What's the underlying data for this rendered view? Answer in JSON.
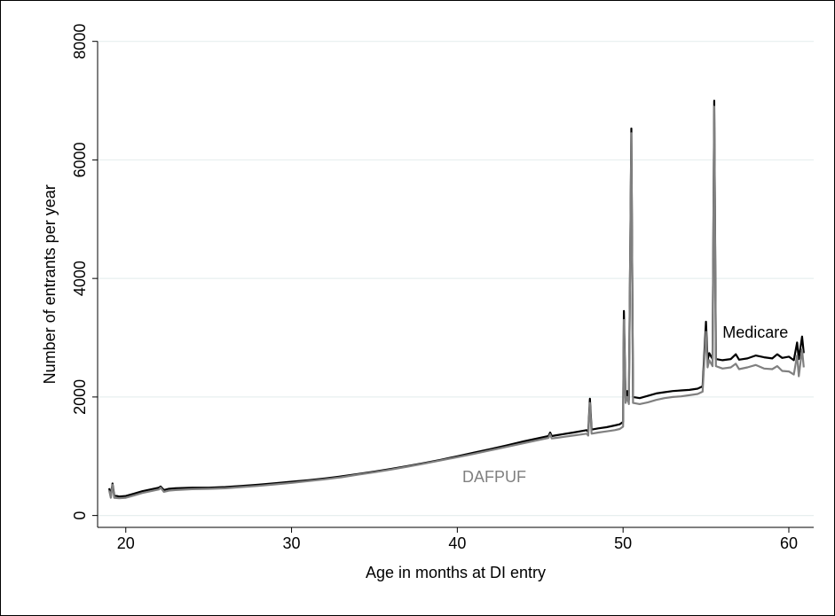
{
  "chart_data": {
    "type": "line",
    "title": "",
    "xlabel": "Age in months at DI entry",
    "ylabel": "Number of entrants per year",
    "xlim": [
      18.3,
      61.5
    ],
    "ylim": [
      -200,
      8100
    ],
    "x_ticks": [
      20,
      30,
      40,
      50,
      60
    ],
    "y_ticks": [
      0,
      2000,
      4000,
      6000,
      8000
    ],
    "grid": "horizontal",
    "legend": "none",
    "annotations": [
      {
        "text": "Medicare",
        "series": "Medicare"
      },
      {
        "text": "DAFPUF",
        "series": "DAFPUF"
      }
    ],
    "series": [
      {
        "name": "Medicare",
        "color": "#000000",
        "points": [
          [
            19.0,
            460
          ],
          [
            19.1,
            330
          ],
          [
            19.2,
            540
          ],
          [
            19.3,
            340
          ],
          [
            19.6,
            320
          ],
          [
            20.0,
            330
          ],
          [
            20.5,
            370
          ],
          [
            21.0,
            410
          ],
          [
            21.5,
            440
          ],
          [
            22.0,
            470
          ],
          [
            22.1,
            490
          ],
          [
            22.3,
            430
          ],
          [
            22.6,
            450
          ],
          [
            23.0,
            460
          ],
          [
            24.0,
            470
          ],
          [
            25.0,
            470
          ],
          [
            26.0,
            480
          ],
          [
            27.0,
            500
          ],
          [
            28.0,
            520
          ],
          [
            29.0,
            545
          ],
          [
            30.0,
            570
          ],
          [
            31.0,
            595
          ],
          [
            32.0,
            625
          ],
          [
            33.0,
            660
          ],
          [
            34.0,
            700
          ],
          [
            35.0,
            740
          ],
          [
            36.0,
            785
          ],
          [
            37.0,
            835
          ],
          [
            38.0,
            885
          ],
          [
            39.0,
            940
          ],
          [
            40.0,
            1000
          ],
          [
            41.0,
            1060
          ],
          [
            42.0,
            1120
          ],
          [
            43.0,
            1185
          ],
          [
            44.0,
            1250
          ],
          [
            45.0,
            1310
          ],
          [
            45.5,
            1340
          ],
          [
            45.6,
            1400
          ],
          [
            45.7,
            1340
          ],
          [
            46.0,
            1355
          ],
          [
            47.0,
            1400
          ],
          [
            47.8,
            1440
          ],
          [
            47.9,
            1410
          ],
          [
            48.0,
            1970
          ],
          [
            48.1,
            1450
          ],
          [
            48.5,
            1470
          ],
          [
            49.0,
            1490
          ],
          [
            49.5,
            1520
          ],
          [
            49.8,
            1540
          ],
          [
            50.0,
            1580
          ],
          [
            50.05,
            3450
          ],
          [
            50.15,
            1980
          ],
          [
            50.25,
            2100
          ],
          [
            50.35,
            1950
          ],
          [
            50.5,
            6530
          ],
          [
            50.6,
            2000
          ],
          [
            51.0,
            1980
          ],
          [
            51.5,
            2020
          ],
          [
            52.0,
            2060
          ],
          [
            52.5,
            2080
          ],
          [
            53.0,
            2100
          ],
          [
            53.5,
            2110
          ],
          [
            54.0,
            2120
          ],
          [
            54.5,
            2140
          ],
          [
            54.8,
            2180
          ],
          [
            55.0,
            3270
          ],
          [
            55.1,
            2620
          ],
          [
            55.2,
            2740
          ],
          [
            55.4,
            2640
          ],
          [
            55.5,
            7000
          ],
          [
            55.6,
            2640
          ],
          [
            56.0,
            2620
          ],
          [
            56.5,
            2640
          ],
          [
            56.8,
            2720
          ],
          [
            57.0,
            2630
          ],
          [
            57.5,
            2650
          ],
          [
            58.0,
            2700
          ],
          [
            58.5,
            2670
          ],
          [
            59.0,
            2650
          ],
          [
            59.3,
            2720
          ],
          [
            59.6,
            2660
          ],
          [
            60.0,
            2680
          ],
          [
            60.3,
            2620
          ],
          [
            60.5,
            2920
          ],
          [
            60.6,
            2640
          ],
          [
            60.8,
            3020
          ],
          [
            60.9,
            2740
          ]
        ]
      },
      {
        "name": "DAFPUF",
        "color": "#808080",
        "points": [
          [
            19.0,
            420
          ],
          [
            19.1,
            300
          ],
          [
            19.2,
            520
          ],
          [
            19.3,
            300
          ],
          [
            19.6,
            290
          ],
          [
            20.0,
            300
          ],
          [
            20.5,
            340
          ],
          [
            21.0,
            380
          ],
          [
            21.5,
            410
          ],
          [
            22.0,
            440
          ],
          [
            22.1,
            470
          ],
          [
            22.3,
            400
          ],
          [
            22.6,
            420
          ],
          [
            23.0,
            430
          ],
          [
            24.0,
            445
          ],
          [
            25.0,
            450
          ],
          [
            26.0,
            460
          ],
          [
            27.0,
            480
          ],
          [
            28.0,
            500
          ],
          [
            29.0,
            525
          ],
          [
            30.0,
            550
          ],
          [
            31.0,
            580
          ],
          [
            32.0,
            610
          ],
          [
            33.0,
            645
          ],
          [
            34.0,
            690
          ],
          [
            35.0,
            730
          ],
          [
            36.0,
            775
          ],
          [
            37.0,
            825
          ],
          [
            38.0,
            875
          ],
          [
            39.0,
            930
          ],
          [
            40.0,
            985
          ],
          [
            41.0,
            1040
          ],
          [
            42.0,
            1100
          ],
          [
            43.0,
            1160
          ],
          [
            44.0,
            1220
          ],
          [
            45.0,
            1280
          ],
          [
            45.5,
            1310
          ],
          [
            45.6,
            1370
          ],
          [
            45.7,
            1300
          ],
          [
            46.0,
            1310
          ],
          [
            47.0,
            1350
          ],
          [
            47.8,
            1380
          ],
          [
            47.9,
            1350
          ],
          [
            48.0,
            1900
          ],
          [
            48.1,
            1380
          ],
          [
            48.5,
            1400
          ],
          [
            49.0,
            1420
          ],
          [
            49.5,
            1440
          ],
          [
            49.8,
            1460
          ],
          [
            50.0,
            1500
          ],
          [
            50.05,
            3300
          ],
          [
            50.15,
            1900
          ],
          [
            50.25,
            2000
          ],
          [
            50.35,
            1880
          ],
          [
            50.5,
            6450
          ],
          [
            50.6,
            1900
          ],
          [
            51.0,
            1880
          ],
          [
            51.5,
            1910
          ],
          [
            52.0,
            1950
          ],
          [
            52.5,
            1980
          ],
          [
            53.0,
            2000
          ],
          [
            53.5,
            2010
          ],
          [
            54.0,
            2030
          ],
          [
            54.5,
            2050
          ],
          [
            54.8,
            2090
          ],
          [
            55.0,
            3100
          ],
          [
            55.1,
            2500
          ],
          [
            55.2,
            2620
          ],
          [
            55.4,
            2520
          ],
          [
            55.5,
            6900
          ],
          [
            55.6,
            2520
          ],
          [
            56.0,
            2480
          ],
          [
            56.5,
            2500
          ],
          [
            56.8,
            2560
          ],
          [
            57.0,
            2470
          ],
          [
            57.5,
            2500
          ],
          [
            58.0,
            2540
          ],
          [
            58.5,
            2480
          ],
          [
            59.0,
            2470
          ],
          [
            59.3,
            2520
          ],
          [
            59.6,
            2440
          ],
          [
            60.0,
            2430
          ],
          [
            60.3,
            2380
          ],
          [
            60.5,
            2700
          ],
          [
            60.6,
            2350
          ],
          [
            60.8,
            2800
          ],
          [
            60.9,
            2500
          ]
        ]
      }
    ]
  }
}
